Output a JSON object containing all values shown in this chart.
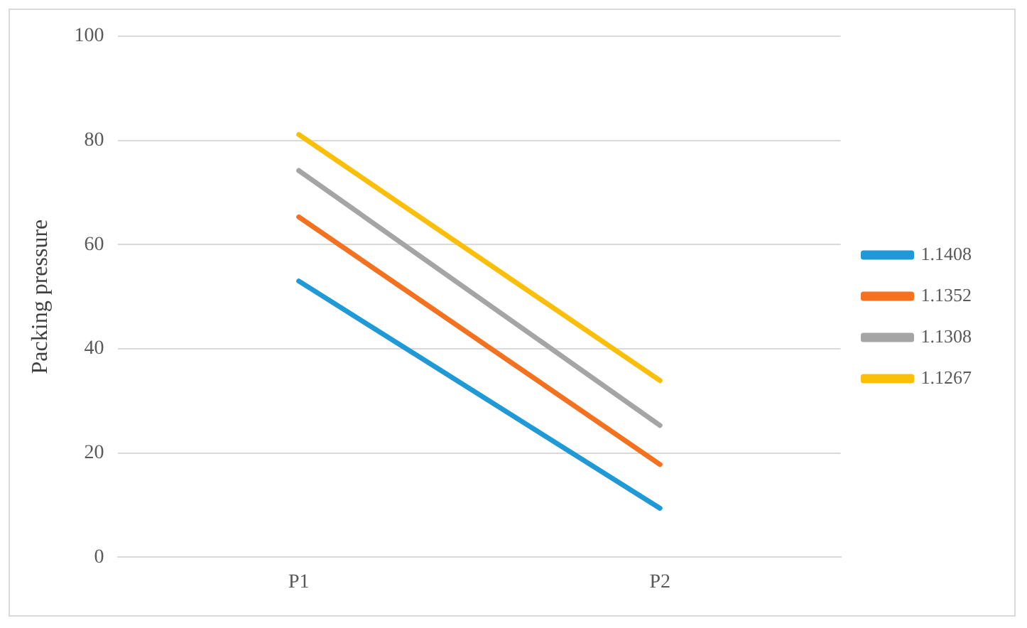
{
  "chart_data": {
    "type": "line",
    "ylabel": "Packing pressure",
    "categories": [
      "P1",
      "P2"
    ],
    "series": [
      {
        "name": "1.1408",
        "color": "#1f9ad6",
        "values": [
          53,
          9.4
        ]
      },
      {
        "name": "1.1352",
        "color": "#f4711f",
        "values": [
          65.3,
          17.8
        ]
      },
      {
        "name": "1.1308",
        "color": "#a5a5a5",
        "values": [
          74.2,
          25.3
        ]
      },
      {
        "name": "1.1267",
        "color": "#fbbf0a",
        "values": [
          81.1,
          33.9
        ]
      }
    ],
    "ylim": [
      0,
      100
    ],
    "yticks": [
      0,
      20,
      40,
      60,
      80,
      100
    ],
    "grid": "y",
    "legend": "right",
    "marker": "none",
    "line_style": "solid"
  }
}
